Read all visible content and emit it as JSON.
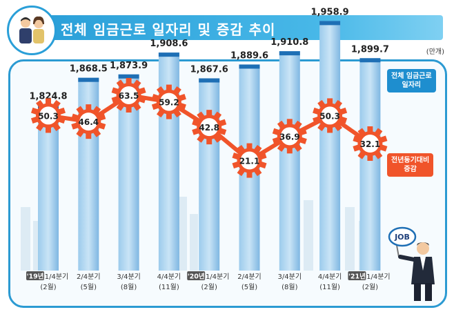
{
  "title": "전체 임금근로 일자리 및 증감 추이",
  "unit": "(만개)",
  "legend": {
    "bar": "전체 임금근로 일자리",
    "line": "전년동기대비 증감"
  },
  "badge_text": "JOB",
  "colors": {
    "bar": "#3f8fd0",
    "bar_top": "#1e6fb5",
    "line": "#f0542a",
    "accent": "#2a9fd8"
  },
  "chart_data": {
    "type": "bar",
    "categories": [
      "1/4분기",
      "2/4분기",
      "3/4분기",
      "4/4분기",
      "1/4분기",
      "2/4분기",
      "3/4분기",
      "4/4분기",
      "1/4분기"
    ],
    "sublabels": [
      "(2월)",
      "(5월)",
      "(8월)",
      "(11월)",
      "(2월)",
      "(5월)",
      "(8월)",
      "(11월)",
      "(2월)"
    ],
    "year_tags": [
      "'19년",
      "",
      "",
      "",
      "'20년",
      "",
      "",
      "",
      "'21년"
    ],
    "series": [
      {
        "name": "전체 임금근로 일자리",
        "type": "bar",
        "values": [
          1824.8,
          1868.5,
          1873.9,
          1908.6,
          1867.6,
          1889.6,
          1910.8,
          1958.9,
          1899.7
        ],
        "labels": [
          "1,824.8",
          "1,868.5",
          "1,873.9",
          "1,908.6",
          "1,867.6",
          "1,889.6",
          "1,910.8",
          "1,958.9",
          "1,899.7"
        ]
      },
      {
        "name": "전년동기대비 증감",
        "type": "line",
        "values": [
          50.3,
          46.4,
          63.5,
          59.2,
          42.8,
          21.1,
          36.9,
          50.3,
          32.1
        ],
        "labels": [
          "50.3",
          "46.4",
          "63.5",
          "59.2",
          "42.8",
          "21.1",
          "36.9",
          "50.3",
          "32.1"
        ]
      }
    ]
  }
}
